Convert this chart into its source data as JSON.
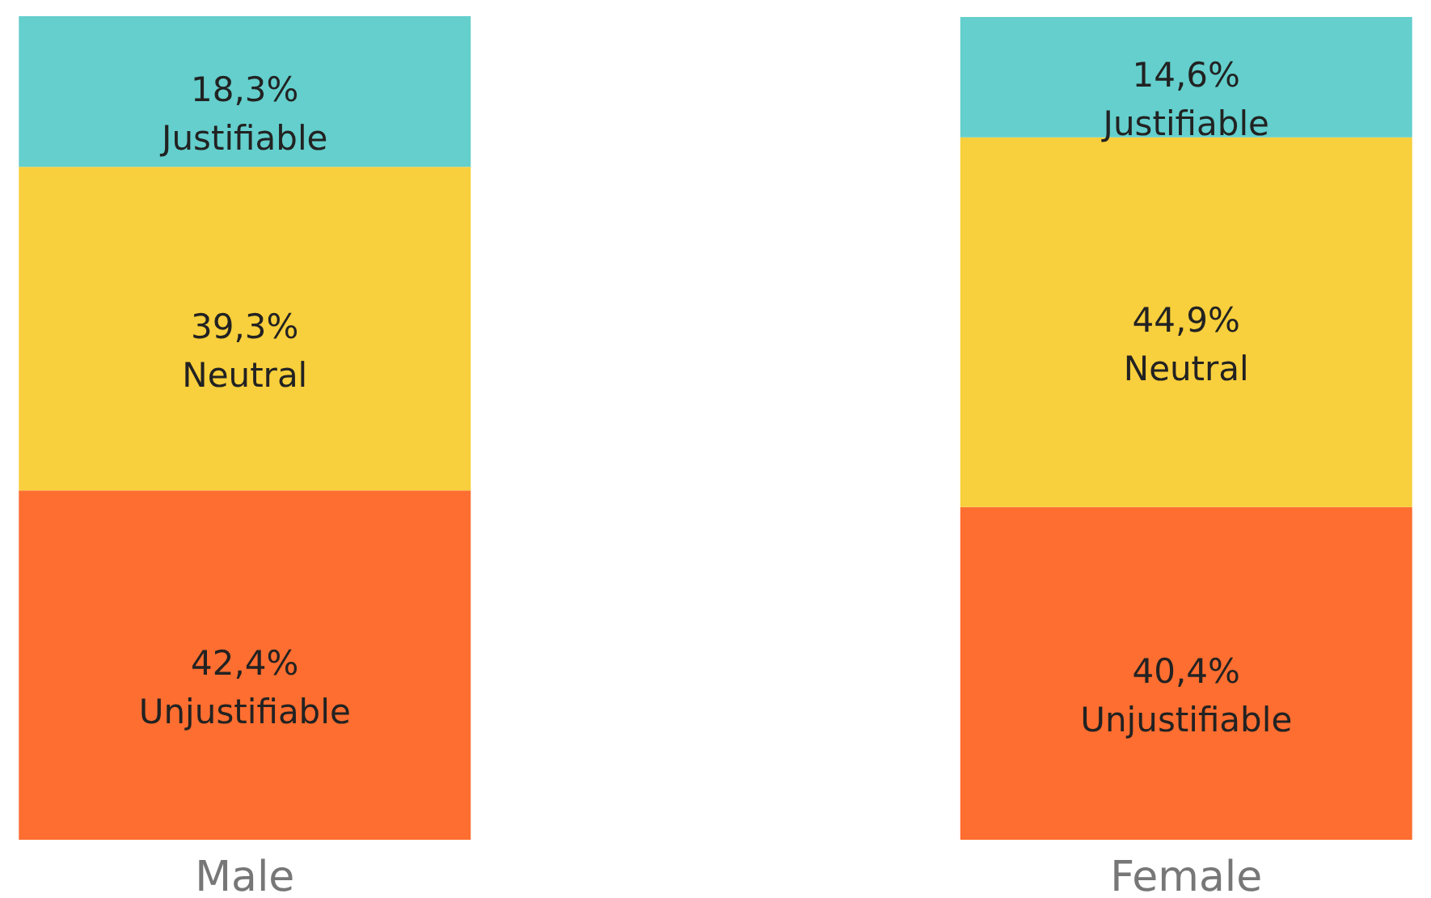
{
  "chart_data": {
    "type": "bar",
    "stacked": true,
    "categories": [
      "Male",
      "Female"
    ],
    "ylim": [
      0,
      100
    ],
    "tick_labels": "x",
    "series": [
      {
        "name": "Unjustifiable",
        "color": "#fd6e30",
        "values": [
          42.4,
          40.4
        ],
        "value_labels": [
          "42,4%",
          "40,4%"
        ]
      },
      {
        "name": "Neutral",
        "color": "#f8cf3c",
        "values": [
          39.3,
          44.9
        ],
        "value_labels": [
          "39,3%",
          "44,9%"
        ]
      },
      {
        "name": "Justifiable",
        "color": "#64cfcc",
        "values": [
          18.3,
          14.6
        ],
        "value_labels": [
          "18,3%",
          "14,6%"
        ]
      }
    ]
  }
}
